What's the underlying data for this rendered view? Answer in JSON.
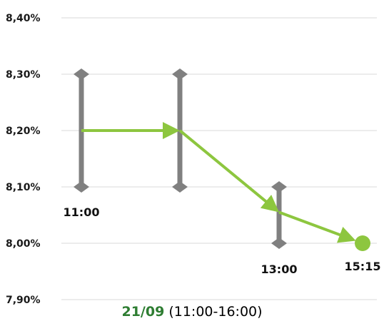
{
  "chart_data": {
    "type": "line",
    "y_ticks": [
      {
        "value": 8.4,
        "label": "8,40%"
      },
      {
        "value": 8.3,
        "label": "8,30%"
      },
      {
        "value": 8.2,
        "label": "8,20%"
      },
      {
        "value": 8.1,
        "label": "8,10%"
      },
      {
        "value": 8.0,
        "label": "8,00%"
      },
      {
        "value": 7.9,
        "label": "7,90%"
      }
    ],
    "ylim": [
      7.9,
      8.4
    ],
    "grid": true,
    "ranges": [
      {
        "low": 8.1,
        "high": 8.3
      },
      {
        "low": 8.1,
        "high": 8.3
      },
      {
        "low": 8.0,
        "high": 8.1
      }
    ],
    "path": [
      8.2,
      8.2,
      8.055,
      8.0
    ],
    "point_labels": [
      {
        "text": "11:00",
        "value": 8.1
      },
      {
        "text": "13:00",
        "value": 8.0
      },
      {
        "text": "15:15",
        "value": 8.0
      }
    ],
    "colors": {
      "range": "#808080",
      "line": "#8dc63f",
      "grid": "#d9d9d9"
    }
  },
  "caption": {
    "date": "21/09",
    "window": " (11:00-16:00)",
    "color": "#2e7d32"
  }
}
